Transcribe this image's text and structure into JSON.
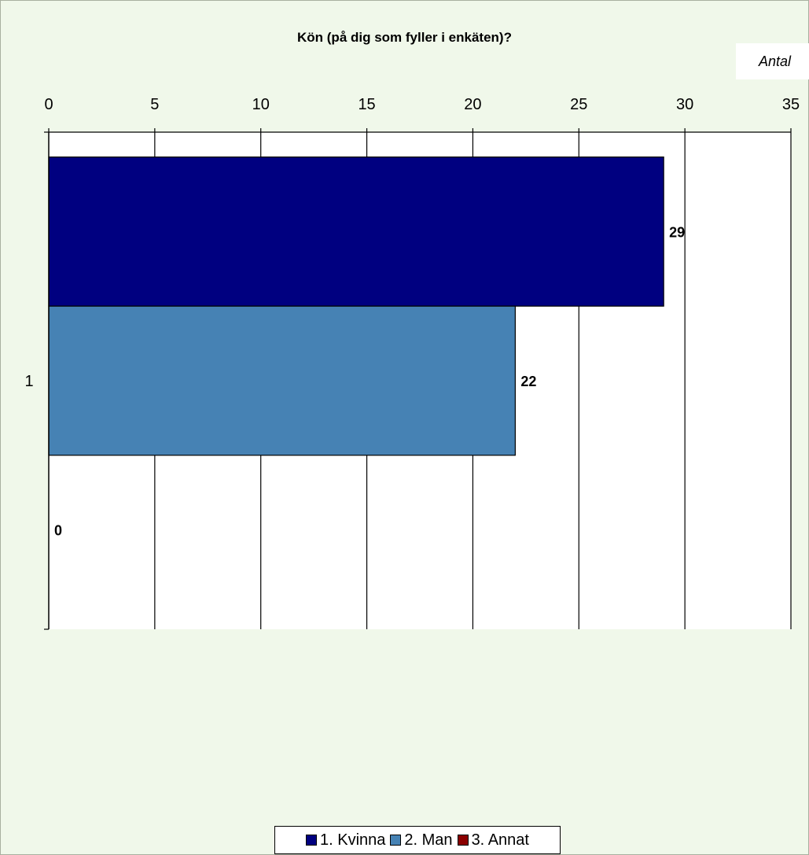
{
  "chart_data": {
    "type": "bar",
    "orientation": "horizontal",
    "title": "Kön (på dig som fyller i enkäten)?",
    "unit_label": "Antal",
    "categories": [
      "1"
    ],
    "xlim": [
      0,
      35
    ],
    "x_ticks": [
      0,
      5,
      10,
      15,
      20,
      25,
      30,
      35
    ],
    "grid": true,
    "legend_position": "bottom",
    "series": [
      {
        "name": "1. Kvinna",
        "values": [
          29
        ],
        "color": "#000080"
      },
      {
        "name": "2. Man",
        "values": [
          22
        ],
        "color": "#4682b4"
      },
      {
        "name": "3. Annat",
        "values": [
          0
        ],
        "color": "#8b0000"
      }
    ]
  }
}
